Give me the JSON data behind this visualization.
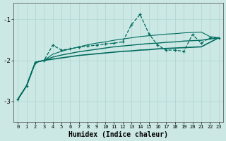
{
  "x": [
    0,
    1,
    2,
    3,
    4,
    5,
    6,
    7,
    8,
    9,
    10,
    11,
    12,
    13,
    14,
    15,
    16,
    17,
    18,
    19,
    20,
    21,
    22,
    23
  ],
  "main_line": [
    -2.95,
    -2.62,
    -2.05,
    -2.0,
    -1.63,
    -1.75,
    -1.72,
    -1.68,
    -1.65,
    -1.63,
    -1.6,
    -1.58,
    -1.55,
    -1.13,
    -0.88,
    -1.35,
    -1.63,
    -1.75,
    -1.75,
    -1.78,
    -1.37,
    -1.58,
    -1.45,
    -1.45
  ],
  "reg_top": [
    -2.95,
    -2.62,
    -2.05,
    -2.0,
    -1.85,
    -1.78,
    -1.72,
    -1.67,
    -1.62,
    -1.58,
    -1.55,
    -1.51,
    -1.48,
    -1.45,
    -1.42,
    -1.4,
    -1.38,
    -1.36,
    -1.35,
    -1.33,
    -1.32,
    -1.31,
    -1.42,
    -1.45
  ],
  "reg_mid": [
    -2.95,
    -2.62,
    -2.05,
    -2.0,
    -1.92,
    -1.87,
    -1.83,
    -1.79,
    -1.76,
    -1.73,
    -1.7,
    -1.67,
    -1.65,
    -1.63,
    -1.61,
    -1.59,
    -1.58,
    -1.56,
    -1.55,
    -1.53,
    -1.52,
    -1.51,
    -1.48,
    -1.45
  ],
  "reg_bot": [
    -2.95,
    -2.62,
    -2.05,
    -2.0,
    -1.97,
    -1.94,
    -1.91,
    -1.88,
    -1.86,
    -1.84,
    -1.82,
    -1.8,
    -1.78,
    -1.77,
    -1.75,
    -1.74,
    -1.72,
    -1.71,
    -1.7,
    -1.69,
    -1.68,
    -1.67,
    -1.56,
    -1.45
  ],
  "bg_color": "#cce8e5",
  "line_color": "#006b5e",
  "grid_color": "#aad4d0",
  "xlabel": "Humidex (Indice chaleur)",
  "ylim": [
    -3.5,
    -0.6
  ],
  "xlim": [
    -0.5,
    23.5
  ],
  "yticks": [
    -3.0,
    -2.0,
    -1.0
  ]
}
